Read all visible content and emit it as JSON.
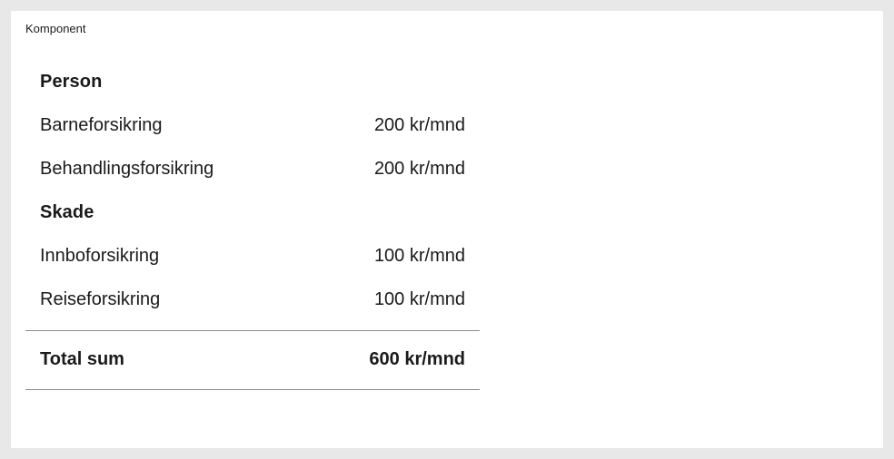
{
  "component_label": "Komponent",
  "groups": [
    {
      "heading": "Person",
      "items": [
        {
          "name": "Barneforsikring",
          "price": "200 kr/mnd"
        },
        {
          "name": "Behandlingsforsikring",
          "price": "200 kr/mnd"
        }
      ]
    },
    {
      "heading": "Skade",
      "items": [
        {
          "name": "Innboforsikring",
          "price": "100 kr/mnd"
        },
        {
          "name": "Reiseforsikring",
          "price": "100 kr/mnd"
        }
      ]
    }
  ],
  "total": {
    "label": "Total sum",
    "value": "600 kr/mnd"
  },
  "colors": {
    "page_background": "#e8e8e8",
    "canvas_background": "#ffffff",
    "text": "#1a1a1a",
    "divider": "#8c8c8c"
  }
}
